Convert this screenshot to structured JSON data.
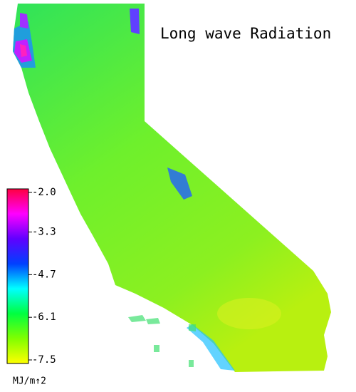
{
  "title": "Long wave Radiation",
  "colorbar": {
    "range": [
      -7.5,
      -2
    ],
    "ticks": [
      {
        "value": -2,
        "label": "-2.0"
      },
      -3.3,
      -4.7,
      -6.1,
      -7.5
    ],
    "unit": "MJ/m↑2",
    "colors": [
      "#ffff00",
      "#80ff00",
      "#00ff40",
      "#00ffff",
      "#0040ff",
      "#6000ff",
      "#ff00ff",
      "#ff0040"
    ]
  }
}
